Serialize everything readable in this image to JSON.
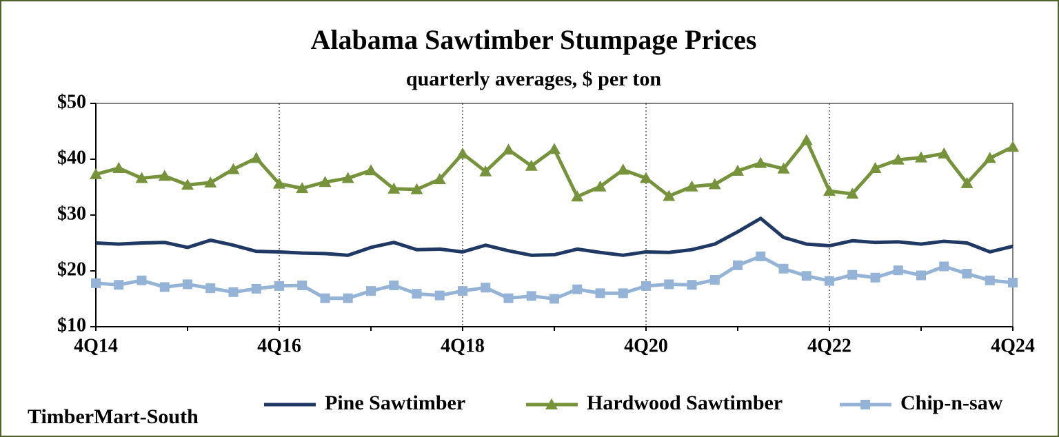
{
  "chart_data": {
    "type": "line",
    "title": "Alabama Sawtimber Stumpage Prices",
    "subtitle": "quarterly averages, $ per ton",
    "source": "TimberMart-South",
    "categories": [
      "4Q14",
      null,
      null,
      null,
      null,
      null,
      null,
      null,
      "4Q16",
      null,
      null,
      null,
      null,
      null,
      null,
      null,
      "4Q18",
      null,
      null,
      null,
      null,
      null,
      null,
      null,
      "4Q20",
      null,
      null,
      null,
      null,
      null,
      null,
      null,
      "4Q22",
      null,
      null,
      null,
      null,
      null,
      null,
      null,
      "4Q24"
    ],
    "ylim": [
      10,
      50
    ],
    "yticks": [
      {
        "value": 10,
        "label": "$10"
      },
      {
        "value": 20,
        "label": "$20"
      },
      {
        "value": 30,
        "label": "$30"
      },
      {
        "value": 40,
        "label": "$40"
      },
      {
        "value": 50,
        "label": "$50"
      }
    ],
    "vertical_grid": true,
    "legend": "bottom",
    "series": [
      {
        "name": "Pine Sawtimber",
        "color": "#1f3864",
        "marker": "none",
        "values": [
          25.0,
          24.8,
          25.0,
          25.1,
          24.2,
          25.5,
          24.6,
          23.5,
          23.4,
          23.2,
          23.1,
          22.8,
          24.2,
          25.1,
          23.8,
          23.9,
          23.4,
          24.6,
          23.6,
          22.8,
          22.9,
          23.9,
          23.3,
          22.8,
          23.4,
          23.3,
          23.8,
          24.8,
          27.0,
          29.4,
          26.0,
          24.8,
          24.5,
          25.4,
          25.1,
          25.2,
          24.8,
          25.3,
          25.0,
          23.4,
          24.4
        ]
      },
      {
        "name": "Hardwood Sawtimber",
        "color": "#76933c",
        "marker": "triangle",
        "values": [
          37.3,
          38.4,
          36.6,
          37.0,
          35.4,
          35.8,
          38.2,
          40.2,
          35.6,
          34.8,
          35.9,
          36.6,
          38.0,
          34.7,
          34.6,
          36.4,
          41.0,
          37.8,
          41.7,
          38.8,
          41.8,
          33.3,
          35.1,
          38.1,
          36.6,
          33.4,
          35.1,
          35.5,
          37.9,
          39.3,
          38.3,
          43.4,
          34.3,
          33.8,
          38.4,
          39.9,
          40.3,
          41.0,
          35.7,
          40.2,
          42.2
        ]
      },
      {
        "name": "Chip-n-saw",
        "color": "#95b3d7",
        "marker": "square",
        "values": [
          17.8,
          17.5,
          18.3,
          17.1,
          17.6,
          16.9,
          16.2,
          16.8,
          17.3,
          17.4,
          15.1,
          15.1,
          16.4,
          17.4,
          15.9,
          15.6,
          16.4,
          17.0,
          15.1,
          15.5,
          15.0,
          16.7,
          16.0,
          16.0,
          17.3,
          17.6,
          17.5,
          18.4,
          21.0,
          22.6,
          20.4,
          19.1,
          18.2,
          19.3,
          18.8,
          20.1,
          19.2,
          20.8,
          19.5,
          18.3,
          17.9
        ]
      }
    ]
  }
}
